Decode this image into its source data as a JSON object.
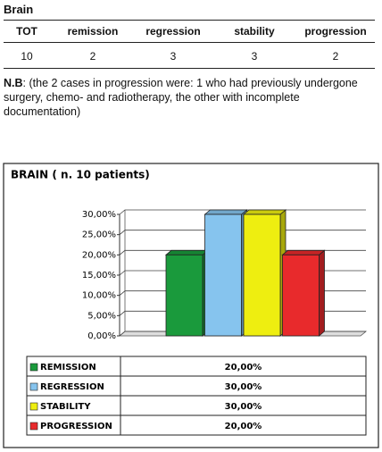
{
  "section_title": "Brain",
  "table": {
    "header": [
      "TOT",
      "remission",
      "regression",
      "stability",
      "progression"
    ],
    "rows": [
      [
        10,
        2,
        3,
        3,
        2
      ]
    ]
  },
  "note": {
    "label": "N.B",
    "text": ": (the 2 cases in progression were: 1 who had previously undergone surgery, chemo- and radiotherapy, the other with incomplete documentation)"
  },
  "chart_data": {
    "type": "bar",
    "title": "BRAIN ( n. 10 patients)",
    "categories": [
      "REMISSION",
      "REGRESSION",
      "STABILITY",
      "PROGRESSION"
    ],
    "values": [
      20,
      30,
      30,
      20
    ],
    "value_labels": [
      "20,00%",
      "30,00%",
      "30,00%",
      "20,00%"
    ],
    "colors": [
      "#1a9a3c",
      "#86c4ee",
      "#eeee10",
      "#e82a2c"
    ],
    "ylim": [
      0,
      30
    ],
    "yticks": [
      {
        "value": 0,
        "label": "0,00%"
      },
      {
        "value": 5,
        "label": "5,00%"
      },
      {
        "value": 10,
        "label": "10,00%"
      },
      {
        "value": 15,
        "label": "15,00%"
      },
      {
        "value": 20,
        "label": "20,00%"
      },
      {
        "value": 25,
        "label": "25,00%"
      },
      {
        "value": 30,
        "label": "30,00%"
      }
    ],
    "grid": true
  }
}
